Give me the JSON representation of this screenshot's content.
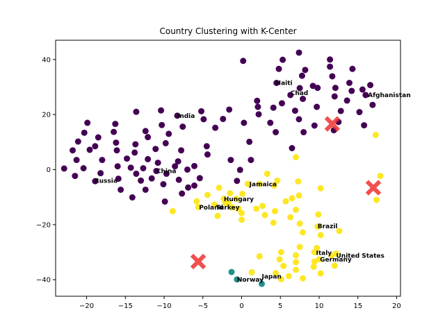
{
  "chart_data": {
    "type": "scatter",
    "title": "Country Clustering with K-Center",
    "xlabel": "",
    "ylabel": "",
    "xlim": [
      -24,
      20.5
    ],
    "ylim": [
      -46,
      47
    ],
    "xticks": [
      -20,
      -15,
      -10,
      -5,
      0,
      5,
      10,
      15,
      20
    ],
    "yticks": [
      -40,
      -20,
      0,
      20,
      40
    ],
    "xtick_labels": [
      "−20",
      "−15",
      "−10",
      "−5",
      "0",
      "5",
      "10",
      "15",
      "20"
    ],
    "ytick_labels": [
      "−40",
      "−20",
      "0",
      "20",
      "40"
    ],
    "grid": false,
    "cluster_colors": [
      "#440154",
      "#21918c",
      "#fde725"
    ],
    "center_color": "#f03232",
    "series": [
      {
        "cluster": 0,
        "points": [
          [
            -22.9,
            0.4
          ],
          [
            -21.8,
            7
          ],
          [
            -21.5,
            -2.3
          ],
          [
            -21.3,
            3.5
          ],
          [
            -21.1,
            10.2
          ],
          [
            -20.4,
            0.5
          ],
          [
            -20.3,
            13.4
          ],
          [
            -19.9,
            17
          ],
          [
            -19.6,
            7.2
          ],
          [
            -18.9,
            8.5
          ],
          [
            -18.5,
            11.7
          ],
          [
            -18.2,
            -1.3
          ],
          [
            -18,
            3.5
          ],
          [
            -18.9,
            -4.2
          ],
          [
            -16.5,
            13.7
          ],
          [
            -16.3,
            16.6
          ],
          [
            -16.2,
            9.8
          ],
          [
            -16.1,
            7
          ],
          [
            -16,
            1.2
          ],
          [
            -15.9,
            -3.3
          ],
          [
            -15.6,
            -7.3
          ],
          [
            -14.8,
            4
          ],
          [
            -14.3,
            0.7
          ],
          [
            -14.1,
            -10.1
          ],
          [
            -13.8,
            6.2
          ],
          [
            -13.7,
            9.2
          ],
          [
            -13.6,
            21
          ],
          [
            -13.6,
            -1.5
          ],
          [
            -13,
            -4
          ],
          [
            -12.7,
            0.5
          ],
          [
            -12.4,
            -7.3
          ],
          [
            -12.4,
            14
          ],
          [
            -12.1,
            11.8
          ],
          [
            -12.1,
            3.8
          ],
          [
            -11.6,
            -3.2
          ],
          [
            -11.1,
            7.5
          ],
          [
            -11,
            -0.5
          ],
          [
            -10.8,
            2.5
          ],
          [
            -10.4,
            21.5
          ],
          [
            -10.3,
            16.2
          ],
          [
            -10.1,
            -5.3
          ],
          [
            -9.9,
            -11.6
          ],
          [
            -9.8,
            9.6
          ],
          [
            -9.7,
            -1.5
          ],
          [
            -9.4,
            13
          ],
          [
            -8.6,
            1.2
          ],
          [
            -8.3,
            19.6
          ],
          [
            -8.2,
            3
          ],
          [
            -8.1,
            -3.7
          ],
          [
            -7.8,
            7
          ],
          [
            -7.7,
            -8.7
          ],
          [
            -7.6,
            15.6
          ],
          [
            -7,
            0
          ],
          [
            -6.9,
            -6.5
          ],
          [
            -6.1,
            1.3
          ],
          [
            -6.1,
            -5.8
          ],
          [
            -5.2,
            21.2
          ],
          [
            -5.4,
            -3.1
          ],
          [
            -4.9,
            18.3
          ],
          [
            -4.5,
            8.5
          ],
          [
            -4.4,
            5.5
          ],
          [
            -3.4,
            15.2
          ],
          [
            -2.4,
            18.4
          ],
          [
            -1.6,
            21.8
          ],
          [
            -1.4,
            3.5
          ],
          [
            -0.6,
            -4.1
          ],
          [
            -0.2,
            -0.1
          ],
          [
            0.2,
            39.5
          ],
          [
            0.3,
            17
          ],
          [
            1,
            10.1
          ],
          [
            1.2,
            3.5
          ],
          [
            2,
            25
          ],
          [
            2.1,
            22.8
          ],
          [
            2.2,
            20.1
          ],
          [
            3.7,
            17
          ],
          [
            4.1,
            22.5
          ],
          [
            4.4,
            13.6
          ],
          [
            4.5,
            31.5
          ],
          [
            4.8,
            36.6
          ],
          [
            5.2,
            24.1
          ],
          [
            5.3,
            39.9
          ],
          [
            6.3,
            27.1
          ],
          [
            6.9,
            21.4
          ],
          [
            7.4,
            42.5
          ],
          [
            7.4,
            18.3
          ],
          [
            7.5,
            29.6
          ],
          [
            7.8,
            34.1
          ],
          [
            7.9,
            25.7
          ],
          [
            8,
            13.6
          ],
          [
            8.2,
            36.2
          ],
          [
            9.2,
            30.4
          ],
          [
            9.4,
            16
          ],
          [
            9.7,
            22.8
          ],
          [
            9.8,
            29.7
          ],
          [
            11.4,
            37.4
          ],
          [
            11.4,
            40
          ],
          [
            11.7,
            33.9
          ],
          [
            11.9,
            14.3
          ],
          [
            12.1,
            29.7
          ],
          [
            12,
            26.6
          ],
          [
            12.5,
            17.3
          ],
          [
            12.8,
            21.3
          ],
          [
            13.6,
            25.1
          ],
          [
            13.9,
            31.5
          ],
          [
            14.2,
            28.6
          ],
          [
            14.3,
            36.6
          ],
          [
            15.2,
            20.9
          ],
          [
            15.6,
            29.1
          ],
          [
            15.8,
            16.1
          ],
          [
            16,
            27.1
          ],
          [
            16.6,
            30.7
          ],
          [
            16.9,
            23.5
          ],
          [
            6.5,
            7.8
          ]
        ]
      },
      {
        "cluster": 1,
        "points": [
          [
            -1.3,
            -37.2
          ],
          [
            -0.6,
            -39.9
          ],
          [
            2.6,
            -41.5
          ]
        ]
      },
      {
        "cluster": 2,
        "points": [
          [
            -8.9,
            -15.1
          ],
          [
            -5.8,
            -11.5
          ],
          [
            -5.6,
            -13.6
          ],
          [
            -4.4,
            -9.2
          ],
          [
            -3.5,
            -12.7
          ],
          [
            -3.1,
            -16.8
          ],
          [
            -2.9,
            -6.6
          ],
          [
            -2.3,
            -10.6
          ],
          [
            -2.1,
            -12.1
          ],
          [
            -1.7,
            -12.3
          ],
          [
            -1.5,
            -8.6
          ],
          [
            -1.2,
            -13.8
          ],
          [
            -0.7,
            -10.6
          ],
          [
            -0.4,
            -14.2
          ],
          [
            0,
            -18.2
          ],
          [
            0,
            -15.8
          ],
          [
            0.1,
            -8.8
          ],
          [
            0.8,
            -5.2
          ],
          [
            1.3,
            -37.3
          ],
          [
            1.9,
            -14.2
          ],
          [
            2.3,
            -31.5
          ],
          [
            2.3,
            -5.2
          ],
          [
            2.7,
            -13.2
          ],
          [
            3,
            -16.5
          ],
          [
            3.3,
            -1.5
          ],
          [
            4.1,
            -19.3
          ],
          [
            4.2,
            -5.8
          ],
          [
            4.3,
            -15.1
          ],
          [
            4.4,
            -37.6
          ],
          [
            4.6,
            -4
          ],
          [
            4.9,
            -32.6
          ],
          [
            5.1,
            -30
          ],
          [
            5.1,
            -39.8
          ],
          [
            5.4,
            -35
          ],
          [
            5.7,
            -11.5
          ],
          [
            6.1,
            -38.7
          ],
          [
            6.3,
            -17.3
          ],
          [
            6.5,
            -10.4
          ],
          [
            7,
            -14.6
          ],
          [
            7,
            -31.1
          ],
          [
            7,
            -33.6
          ],
          [
            7,
            -36.4
          ],
          [
            7,
            4.5
          ],
          [
            7.3,
            -4.3
          ],
          [
            7.4,
            -9.4
          ],
          [
            7.5,
            -19.6
          ],
          [
            7.5,
            -28.1
          ],
          [
            7.9,
            -22.8
          ],
          [
            7.9,
            -39.5
          ],
          [
            9.3,
            -35.3
          ],
          [
            9.4,
            -33.4
          ],
          [
            9.4,
            -30
          ],
          [
            9.7,
            -28.5
          ],
          [
            9.8,
            -20.7
          ],
          [
            9.9,
            -16.3
          ],
          [
            10,
            -32.6
          ],
          [
            10.2,
            -37.7
          ],
          [
            10.2,
            -6.8
          ],
          [
            10.2,
            -23.8
          ],
          [
            11.6,
            -31.2
          ],
          [
            12,
            -34.9
          ],
          [
            12.2,
            -30.5
          ],
          [
            12.6,
            -22.3
          ],
          [
            17.3,
            12.6
          ],
          [
            17.4,
            -11
          ],
          [
            17.9,
            -2.3
          ]
        ]
      }
    ],
    "centers": [
      [
        11.7,
        16.6
      ],
      [
        17,
        -6.6
      ],
      [
        -5.6,
        -33.4
      ]
    ],
    "annotations": [
      {
        "text": "India",
        "x": -8.3,
        "y": 19.5
      },
      {
        "text": "Haiti",
        "x": 4.4,
        "y": 31.5
      },
      {
        "text": "Chad",
        "x": 6.3,
        "y": 27.9
      },
      {
        "text": "Afghanistan",
        "x": 16.3,
        "y": 27.1
      },
      {
        "text": "China",
        "x": -11,
        "y": -0.5
      },
      {
        "text": "Russia",
        "x": -19,
        "y": -4
      },
      {
        "text": "Jamaica",
        "x": 1,
        "y": -5.3
      },
      {
        "text": "Hungary",
        "x": -2.3,
        "y": -10.7
      },
      {
        "text": "Poland",
        "x": -5.5,
        "y": -13.8
      },
      {
        "text": "Turkey",
        "x": -3.3,
        "y": -13.8
      },
      {
        "text": "Brazil",
        "x": 9.8,
        "y": -20.6
      },
      {
        "text": "Italy",
        "x": 9.6,
        "y": -30.3
      },
      {
        "text": "United States",
        "x": 12.2,
        "y": -31.3
      },
      {
        "text": "Germany",
        "x": 10.1,
        "y": -32.7
      },
      {
        "text": "Japan",
        "x": 2.6,
        "y": -38.8
      },
      {
        "text": "Norway",
        "x": -0.6,
        "y": -40
      }
    ]
  }
}
